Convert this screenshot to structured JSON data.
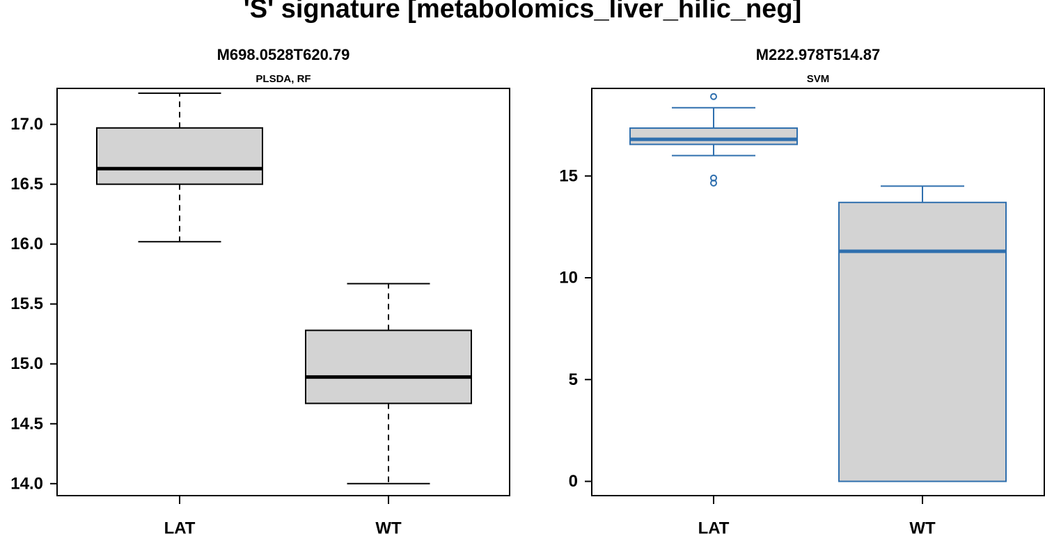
{
  "title": "'S' signature [metabolomics_liver_hilic_neg]",
  "chart_data": [
    {
      "type": "boxplot",
      "title": "M698.0528T620.79",
      "subtitle": "PLSDA, RF",
      "categories": [
        "LAT",
        "WT"
      ],
      "ylim": [
        13.9,
        17.3
      ],
      "yticks": [
        "14.0",
        "14.5",
        "15.0",
        "15.5",
        "16.0",
        "16.5",
        "17.0"
      ],
      "color": "#000000",
      "fill": "#d3d3d3",
      "whisker_style": "dashed",
      "boxes": [
        {
          "category": "LAT",
          "min": 16.02,
          "q1": 16.5,
          "median": 16.63,
          "q3": 16.97,
          "max": 17.26,
          "outliers": []
        },
        {
          "category": "WT",
          "min": 14.0,
          "q1": 14.67,
          "median": 14.89,
          "q3": 15.28,
          "max": 15.67,
          "outliers": []
        }
      ]
    },
    {
      "type": "boxplot",
      "title": "M222.978T514.87",
      "subtitle": "SVM",
      "categories": [
        "LAT",
        "WT"
      ],
      "ylim": [
        -0.7,
        19.3
      ],
      "yticks": [
        "0",
        "5",
        "10",
        "15"
      ],
      "color": "#2f6fae",
      "fill": "#d3d3d3",
      "whisker_style": "solid",
      "boxes": [
        {
          "category": "LAT",
          "min": 16.0,
          "q1": 16.55,
          "median": 16.8,
          "q3": 17.35,
          "max": 18.35,
          "outliers": [
            18.9,
            14.9,
            14.65
          ]
        },
        {
          "category": "WT",
          "min": 0.0,
          "q1": 0.0,
          "median": 11.3,
          "q3": 13.7,
          "max": 14.5,
          "outliers": []
        }
      ]
    }
  ]
}
